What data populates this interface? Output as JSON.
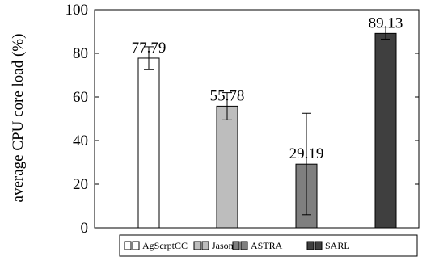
{
  "chart_data": {
    "type": "bar",
    "title": "",
    "xlabel": "",
    "ylabel": "average CPU core load (%)",
    "ylim": [
      0,
      100
    ],
    "yticks": [
      0,
      20,
      40,
      60,
      80,
      100
    ],
    "categories": [
      "AgScrptCC",
      "Jason",
      "ASTRA",
      "SARL"
    ],
    "values": [
      77.79,
      55.78,
      29.19,
      89.13
    ],
    "data_labels": [
      "77.79",
      "55.78",
      "29.19",
      "89.13"
    ],
    "error_low": [
      72.5,
      49.5,
      6.0,
      86.5
    ],
    "error_high": [
      83.0,
      62.0,
      52.5,
      92.0
    ],
    "colors": [
      "#ffffff",
      "#bdbdbd",
      "#7f7f7f",
      "#3f3f3f"
    ],
    "legend": {
      "entries": [
        "AgScrptCC",
        "Jason",
        "ASTRA",
        "SARL"
      ],
      "placement": "bottom"
    },
    "grid": false
  }
}
